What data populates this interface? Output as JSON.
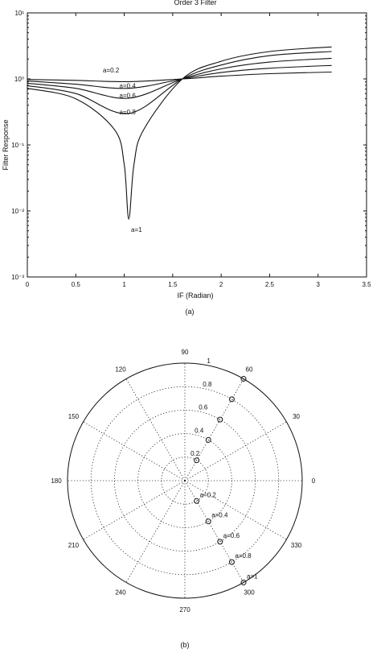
{
  "chart_data": [
    {
      "type": "line",
      "title": "Order 3 Filter",
      "xlabel": "IF (Radian)",
      "ylabel": "Filter Response",
      "xlim": [
        0,
        3.5
      ],
      "ylim": [
        0.001,
        10
      ],
      "yscale": "log",
      "grid": false,
      "xticks": [
        "0",
        "0.5",
        "1",
        "1.5",
        "2",
        "2.5",
        "3",
        "3.5"
      ],
      "yticks": [
        "10⁻³",
        "10⁻²",
        "10⁻¹",
        "10⁰",
        "10¹"
      ],
      "series": [
        {
          "name": "a=0.2",
          "x": [
            0,
            0.5,
            1.047,
            1.6,
            2.0,
            2.5,
            3.14
          ],
          "y": [
            0.98,
            0.95,
            0.91,
            1.0,
            1.1,
            1.2,
            1.27
          ]
        },
        {
          "name": "a=0.4",
          "x": [
            0,
            0.5,
            1.047,
            1.6,
            2.0,
            2.5,
            3.14
          ],
          "y": [
            0.93,
            0.83,
            0.72,
            1.0,
            1.25,
            1.45,
            1.6
          ]
        },
        {
          "name": "a=0.6",
          "x": [
            0,
            0.5,
            1.047,
            1.6,
            2.0,
            2.5,
            3.14
          ],
          "y": [
            0.86,
            0.72,
            0.51,
            1.0,
            1.42,
            1.8,
            2.05
          ]
        },
        {
          "name": "a=0.8",
          "x": [
            0,
            0.5,
            1.047,
            1.6,
            2.0,
            2.5,
            3.14
          ],
          "y": [
            0.79,
            0.6,
            0.3,
            1.0,
            1.62,
            2.25,
            2.6
          ]
        },
        {
          "name": "a=1",
          "x": [
            0,
            0.5,
            0.9,
            1.0,
            1.047,
            1.1,
            1.2,
            1.6,
            2.0,
            2.5,
            3.14
          ],
          "y": [
            0.72,
            0.5,
            0.17,
            0.05,
            0.0075,
            0.05,
            0.17,
            1.0,
            1.85,
            2.6,
            3.05
          ]
        }
      ],
      "caption": "(a)"
    },
    {
      "type": "scatter",
      "projection": "polar",
      "rlim": [
        0,
        1
      ],
      "radial_ticks": [
        "0.2",
        "0.4",
        "0.6",
        "0.8",
        "1"
      ],
      "angle_ticks": [
        "0",
        "30",
        "60",
        "90",
        "120",
        "150",
        "180",
        "210",
        "240",
        "270",
        "300",
        "330"
      ],
      "angle_values": [
        0,
        30,
        60,
        90,
        120,
        150,
        180,
        210,
        240,
        270,
        300,
        330
      ],
      "grid": true,
      "points": [
        {
          "label": "",
          "r": 0.2,
          "theta": 60
        },
        {
          "label": "",
          "r": 0.4,
          "theta": 60
        },
        {
          "label": "",
          "r": 0.6,
          "theta": 60
        },
        {
          "label": "",
          "r": 0.8,
          "theta": 60
        },
        {
          "label": "",
          "r": 1.0,
          "theta": 60
        },
        {
          "label": "a=0.2",
          "r": 0.2,
          "theta": -60
        },
        {
          "label": "a=0.4",
          "r": 0.4,
          "theta": -60
        },
        {
          "label": "a=0.6",
          "r": 0.6,
          "theta": -60
        },
        {
          "label": "a=0.8",
          "r": 0.8,
          "theta": -60
        },
        {
          "label": "a=1",
          "r": 1.0,
          "theta": -60
        }
      ],
      "caption": "(b)"
    }
  ]
}
